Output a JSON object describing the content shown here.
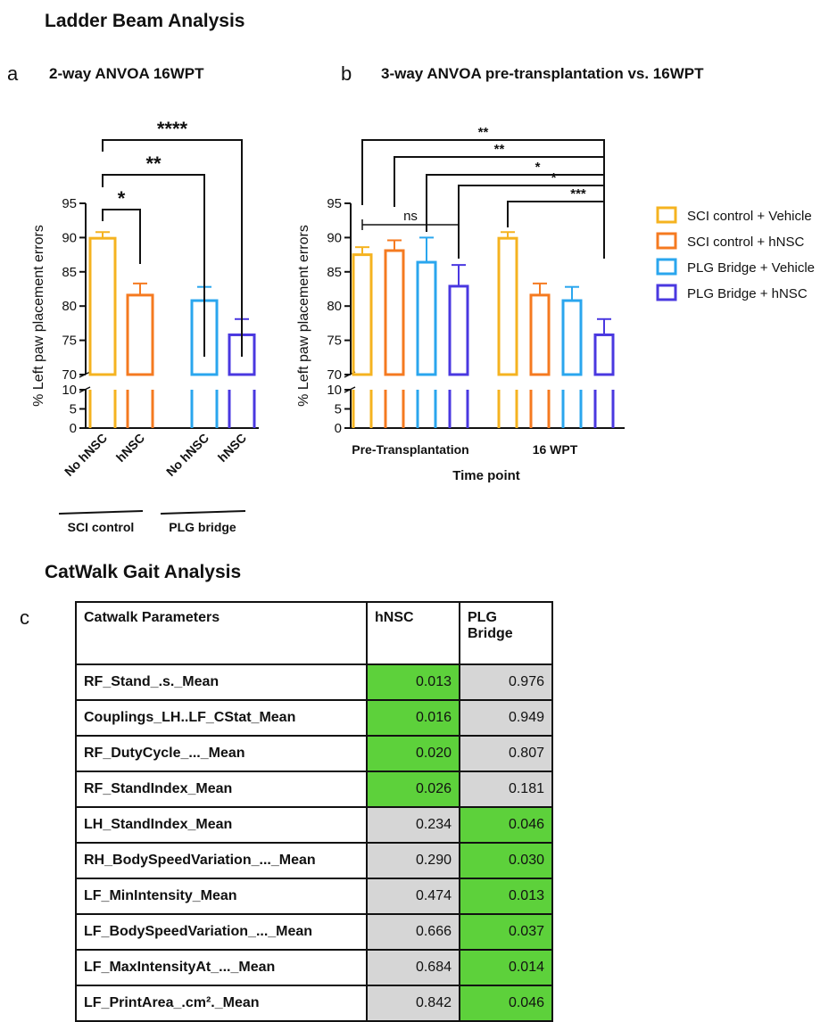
{
  "sections": {
    "ladder_title": "Ladder Beam Analysis",
    "catwalk_title": "CatWalk Gait Analysis"
  },
  "panels": {
    "a": {
      "letter": "a",
      "title": "2-way ANVOA 16WPT"
    },
    "b": {
      "letter": "b",
      "title": "3-way ANVOA pre-transplantation vs. 16WPT"
    },
    "c": {
      "letter": "c"
    }
  },
  "colors": {
    "sci_vehicle": "#f5b320",
    "sci_hnsc": "#f57a20",
    "plg_vehicle": "#2aa6ee",
    "plg_hnsc": "#4a38e0",
    "significant_cell": "#5dd13b",
    "nonsignificant_cell": "#d6d6d6"
  },
  "chart_data": [
    {
      "type": "bar",
      "panel": "a",
      "ylabel": "% Left paw placement errors",
      "ylim_upper": [
        70,
        95
      ],
      "ylim_lower": [
        0,
        10
      ],
      "yticks_upper": [
        "70",
        "75",
        "80",
        "85",
        "90",
        "95"
      ],
      "yticks_lower": [
        "0",
        "5",
        "10"
      ],
      "categories": [
        "No hNSC",
        "hNSC",
        "No hNSC",
        "hNSC"
      ],
      "group_labels": [
        "SCI control",
        "PLG bridge"
      ],
      "values": [
        89.9,
        81.6,
        80.8,
        75.8
      ],
      "errors": [
        0.9,
        1.7,
        2.0,
        2.3
      ],
      "colors": [
        "#f5b320",
        "#f57a20",
        "#2aa6ee",
        "#4a38e0"
      ],
      "significance": [
        {
          "from": 0,
          "to": 1,
          "label": "*"
        },
        {
          "from": 0,
          "to": 2,
          "label": "**"
        },
        {
          "from": 0,
          "to": 3,
          "label": "****"
        }
      ]
    },
    {
      "type": "bar",
      "panel": "b",
      "xlabel": "Time point",
      "ylabel": "% Left paw placement errors",
      "ylim_upper": [
        70,
        95
      ],
      "ylim_lower": [
        0,
        10
      ],
      "yticks_upper": [
        "70",
        "75",
        "80",
        "85",
        "90",
        "95"
      ],
      "yticks_lower": [
        "0",
        "5",
        "10"
      ],
      "categories": [
        "Pre-Transplantation",
        "16 WPT"
      ],
      "series": [
        {
          "name": "SCI control + Vehicle",
          "values": [
            87.5,
            89.9
          ],
          "errors": [
            1.1,
            0.9
          ]
        },
        {
          "name": "SCI control + hNSC",
          "values": [
            88.1,
            81.6
          ],
          "errors": [
            1.5,
            1.7
          ]
        },
        {
          "name": "PLG Bridge + Vehicle",
          "values": [
            86.4,
            80.8
          ],
          "errors": [
            3.6,
            2.0
          ]
        },
        {
          "name": "PLG Bridge + hNSC",
          "values": [
            82.9,
            75.8
          ],
          "errors": [
            3.1,
            2.3
          ]
        }
      ],
      "significance": [
        {
          "label": "**"
        },
        {
          "label": "**"
        },
        {
          "label": "*"
        },
        {
          "label": "*"
        },
        {
          "label": "***"
        },
        {
          "label": "ns"
        }
      ],
      "legend_position": "right"
    }
  ],
  "table": {
    "headers": {
      "param": "Catwalk Parameters",
      "hnsc": "hNSC",
      "plg_line1": "PLG",
      "plg_line2": "Bridge"
    },
    "rows": [
      {
        "param": "RF_Stand_.s._Mean",
        "hnsc": "0.013",
        "plg": "0.976",
        "hnsc_sig": true,
        "plg_sig": false
      },
      {
        "param": "Couplings_LH..LF_CStat_Mean",
        "hnsc": "0.016",
        "plg": "0.949",
        "hnsc_sig": true,
        "plg_sig": false
      },
      {
        "param": "RF_DutyCycle_..._Mean",
        "hnsc": "0.020",
        "plg": "0.807",
        "hnsc_sig": true,
        "plg_sig": false
      },
      {
        "param": "RF_StandIndex_Mean",
        "hnsc": "0.026",
        "plg": "0.181",
        "hnsc_sig": true,
        "plg_sig": false
      },
      {
        "param": "LH_StandIndex_Mean",
        "hnsc": "0.234",
        "plg": "0.046",
        "hnsc_sig": false,
        "plg_sig": true
      },
      {
        "param": "RH_BodySpeedVariation_..._Mean",
        "hnsc": "0.290",
        "plg": "0.030",
        "hnsc_sig": false,
        "plg_sig": true
      },
      {
        "param": "LF_MinIntensity_Mean",
        "hnsc": "0.474",
        "plg": "0.013",
        "hnsc_sig": false,
        "plg_sig": true
      },
      {
        "param": "LF_BodySpeedVariation_..._Mean",
        "hnsc": "0.666",
        "plg": "0.037",
        "hnsc_sig": false,
        "plg_sig": true
      },
      {
        "param": "LF_MaxIntensityAt_..._Mean",
        "hnsc": "0.684",
        "plg": "0.014",
        "hnsc_sig": false,
        "plg_sig": true
      },
      {
        "param": "LF_PrintArea_.cm²._Mean",
        "hnsc": "0.842",
        "plg": "0.046",
        "hnsc_sig": false,
        "plg_sig": true
      }
    ]
  }
}
